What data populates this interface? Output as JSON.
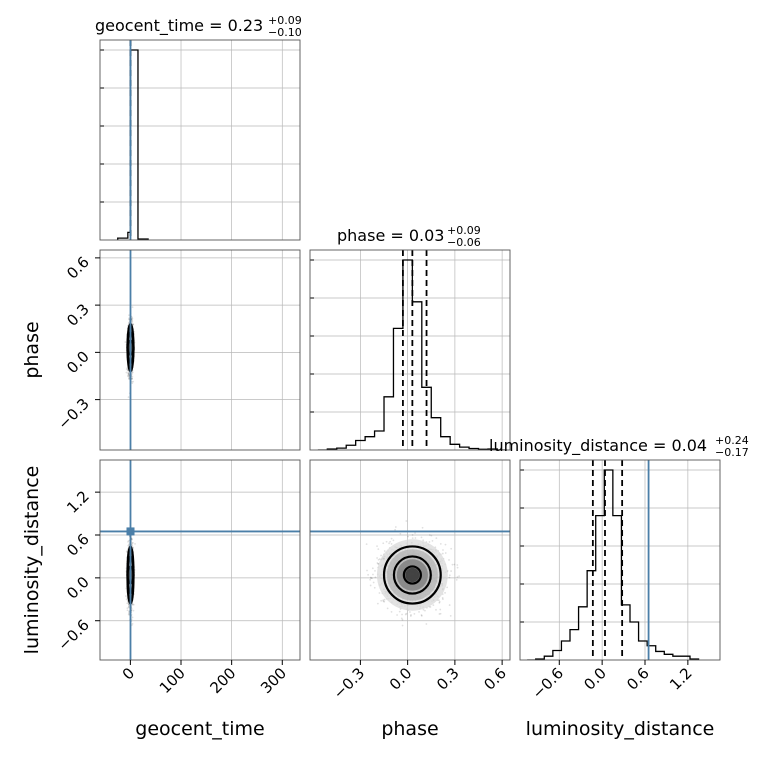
{
  "chart_data": {
    "type": "corner",
    "parameters": [
      "geocent_time",
      "phase",
      "luminosity_distance"
    ],
    "axis_labels": {
      "geocent_time": "geocent_time",
      "phase": "phase",
      "luminosity_distance": "luminosity_distance"
    },
    "titles": [
      {
        "param": "geocent_time",
        "label": "geocent_time",
        "median": "0.23",
        "plus": "+0.09",
        "minus": "−0.10"
      },
      {
        "param": "phase",
        "label": "phase",
        "median": "0.03",
        "plus": "+0.09",
        "minus": "−0.06"
      },
      {
        "param": "luminosity_distance",
        "label": "luminosity_distance",
        "median": "0.04",
        "plus": "+0.24",
        "minus": "−0.17"
      }
    ],
    "ranges": {
      "geocent_time": [
        -60,
        335
      ],
      "phase": [
        -0.62,
        0.65
      ],
      "luminosity_distance": [
        -1.15,
        1.65
      ]
    },
    "ticks": {
      "geocent_time": [
        0,
        100,
        200,
        300
      ],
      "phase": [
        -0.3,
        0.0,
        0.3,
        0.6
      ],
      "luminosity_distance": [
        -0.6,
        0.0,
        0.6,
        1.2
      ]
    },
    "tick_labels": {
      "geocent_time": [
        "0",
        "100",
        "200",
        "300"
      ],
      "phase": [
        "−0.3",
        "0.0",
        "0.3",
        "0.6"
      ],
      "luminosity_distance": [
        "−0.6",
        "0.0",
        "0.6",
        "1.2"
      ]
    },
    "truths": {
      "geocent_time": 0.23,
      "phase": null,
      "luminosity_distance": 0.65
    },
    "quantiles": {
      "geocent_time": [
        0.13,
        0.23,
        0.32
      ],
      "phase": [
        -0.03,
        0.03,
        0.12
      ],
      "luminosity_distance": [
        -0.13,
        0.04,
        0.28
      ]
    },
    "histograms": {
      "geocent_time": {
        "edges": [
          -25,
          -5,
          0,
          15,
          35
        ],
        "counts": [
          0.01,
          0.04,
          1.0,
          0.005
        ]
      },
      "phase": {
        "edges": [
          -0.57,
          -0.51,
          -0.45,
          -0.39,
          -0.33,
          -0.27,
          -0.21,
          -0.15,
          -0.09,
          -0.03,
          0.03,
          0.09,
          0.15,
          0.21,
          0.27,
          0.33,
          0.39,
          0.45,
          0.51,
          0.57,
          0.63
        ],
        "counts": [
          0,
          0.005,
          0.01,
          0.025,
          0.05,
          0.07,
          0.1,
          0.28,
          0.64,
          1.0,
          0.78,
          0.33,
          0.17,
          0.07,
          0.03,
          0.015,
          0.008,
          0.004,
          0.005,
          0
        ]
      },
      "luminosity_distance": {
        "edges": [
          -1.05,
          -0.93,
          -0.81,
          -0.69,
          -0.57,
          -0.45,
          -0.33,
          -0.21,
          -0.09,
          0.03,
          0.15,
          0.27,
          0.39,
          0.51,
          0.63,
          0.75,
          0.87,
          0.99,
          1.11,
          1.23,
          1.35
        ],
        "counts": [
          0,
          0.005,
          0.02,
          0.05,
          0.1,
          0.16,
          0.28,
          0.47,
          0.76,
          1.0,
          0.76,
          0.29,
          0.2,
          0.1,
          0.075,
          0.045,
          0.03,
          0.02,
          0.02,
          0.005
        ]
      }
    },
    "contours": {
      "phase_vs_geocent_time": {
        "center": [
          0.23,
          0.03
        ],
        "sigma": [
          2.5,
          0.075
        ]
      },
      "luminosity_distance_vs_geocent_time": {
        "center": [
          0.23,
          0.04
        ],
        "sigma": [
          2.5,
          0.2
        ]
      },
      "luminosity_distance_vs_phase": {
        "center": [
          0.03,
          0.04
        ],
        "sigma": [
          0.09,
          0.2
        ]
      }
    },
    "grid": true
  }
}
